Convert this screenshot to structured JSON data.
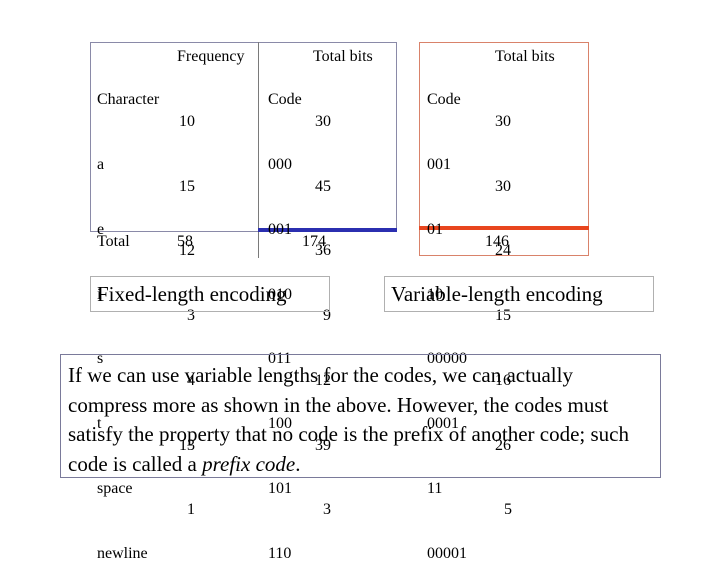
{
  "fixed_table": {
    "header": {
      "character": "Character",
      "frequency": "Frequency",
      "code": "Code",
      "total_bits": "Total bits"
    },
    "rows": [
      {
        "character": "a",
        "frequency": "10",
        "code": "000",
        "total_bits": "30"
      },
      {
        "character": "e",
        "frequency": "15",
        "code": "001",
        "total_bits": "45"
      },
      {
        "character": "i",
        "frequency": "12",
        "code": "010",
        "total_bits": "36"
      },
      {
        "character": "s",
        "frequency": "3",
        "code": "011",
        "total_bits": "9"
      },
      {
        "character": "t",
        "frequency": "4",
        "code": "100",
        "total_bits": "12"
      },
      {
        "character": "space",
        "frequency": "13",
        "code": "101",
        "total_bits": "39"
      },
      {
        "character": "newline",
        "frequency": "1",
        "code": "110",
        "total_bits": "3"
      }
    ],
    "total_label": "Total",
    "total_frequency": "58",
    "total_bits": "174"
  },
  "variable_table": {
    "header": {
      "code": "Code",
      "total_bits": "Total bits"
    },
    "rows": [
      {
        "code": "001",
        "total_bits": "30"
      },
      {
        "code": "01",
        "total_bits": "30"
      },
      {
        "code": "10",
        "total_bits": "24"
      },
      {
        "code": "00000",
        "total_bits": "15"
      },
      {
        "code": "0001",
        "total_bits": "16"
      },
      {
        "code": "11",
        "total_bits": "26"
      },
      {
        "code": "00001",
        "total_bits": "5"
      }
    ],
    "total_bits": "146"
  },
  "labels": {
    "fixed": "Fixed-length encoding",
    "variable": "Variable-length encoding"
  },
  "note": {
    "before": "If we can use variable lengths for the codes, we can actually compress more as shown in the above.  However, the codes must satisfy the property that no code is the prefix of another code; such code is called a ",
    "emphasis": "prefix code",
    "after": "."
  },
  "colors": {
    "fixed_rule": "#2b2fb0",
    "variable_rule": "#e8451e",
    "fixed_border": "#8a8aa8",
    "variable_border": "#d9826a",
    "divider": "#7a7a7a"
  }
}
